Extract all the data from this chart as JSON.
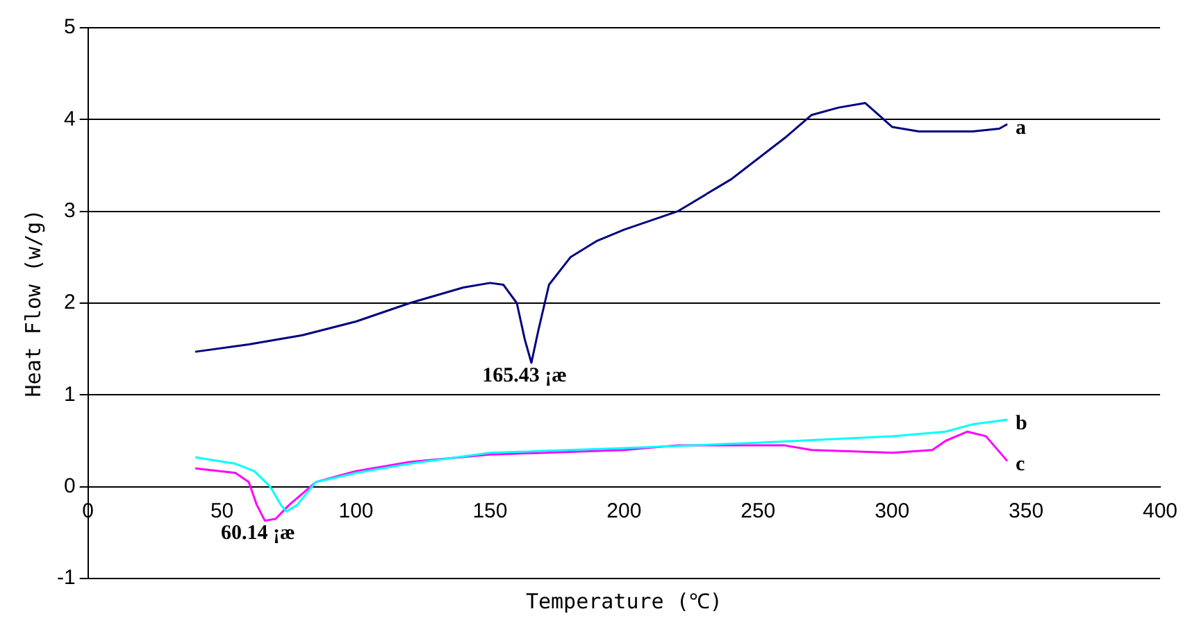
{
  "chart_data": {
    "type": "line",
    "xlabel": "Temperature (℃)",
    "ylabel": "Heat Flow (w/g)",
    "xlim": [
      0,
      400
    ],
    "xticks": [
      0,
      50,
      100,
      150,
      200,
      250,
      300,
      350,
      400
    ],
    "ylim": [
      -1,
      5
    ],
    "yticks": [
      -1,
      0,
      1,
      2,
      3,
      4,
      5
    ],
    "grid": "y",
    "marker": "none",
    "line_style": "solid",
    "series": [
      {
        "name": "a",
        "color": "#000080",
        "x": [
          40,
          60,
          80,
          100,
          120,
          140,
          150,
          155,
          160,
          163,
          165.43,
          168,
          172,
          180,
          190,
          200,
          220,
          240,
          260,
          270,
          280,
          290,
          295,
          300,
          310,
          330,
          340,
          343
        ],
        "values": [
          1.47,
          1.55,
          1.65,
          1.8,
          2.0,
          2.17,
          2.22,
          2.2,
          2.0,
          1.6,
          1.35,
          1.7,
          2.2,
          2.5,
          2.68,
          2.8,
          3.0,
          3.35,
          3.8,
          4.05,
          4.13,
          4.18,
          4.05,
          3.92,
          3.87,
          3.87,
          3.9,
          3.95
        ]
      },
      {
        "name": "b",
        "color": "#00ffff",
        "x": [
          40,
          55,
          62,
          68,
          72,
          74,
          78,
          85,
          100,
          120,
          150,
          200,
          250,
          300,
          320,
          330,
          343
        ],
        "values": [
          0.32,
          0.25,
          0.17,
          0,
          -0.2,
          -0.27,
          -0.2,
          0.05,
          0.15,
          0.25,
          0.37,
          0.42,
          0.48,
          0.55,
          0.6,
          0.68,
          0.73
        ]
      },
      {
        "name": "c",
        "color": "#ff00ff",
        "x": [
          40,
          55,
          60,
          63,
          66,
          70,
          75,
          85,
          100,
          120,
          150,
          200,
          220,
          260,
          270,
          300,
          315,
          320,
          328,
          335,
          343
        ],
        "values": [
          0.2,
          0.15,
          0.05,
          -0.2,
          -0.37,
          -0.35,
          -0.2,
          0.05,
          0.17,
          0.27,
          0.35,
          0.4,
          0.45,
          0.45,
          0.4,
          0.37,
          0.4,
          0.5,
          0.6,
          0.55,
          0.28
        ]
      }
    ],
    "annotations": [
      {
        "text": "165.43 ¡æ",
        "x": 165.43,
        "y": 1.35
      },
      {
        "text": "60.14 ¡æ",
        "x": 66,
        "y": -0.37
      }
    ]
  }
}
